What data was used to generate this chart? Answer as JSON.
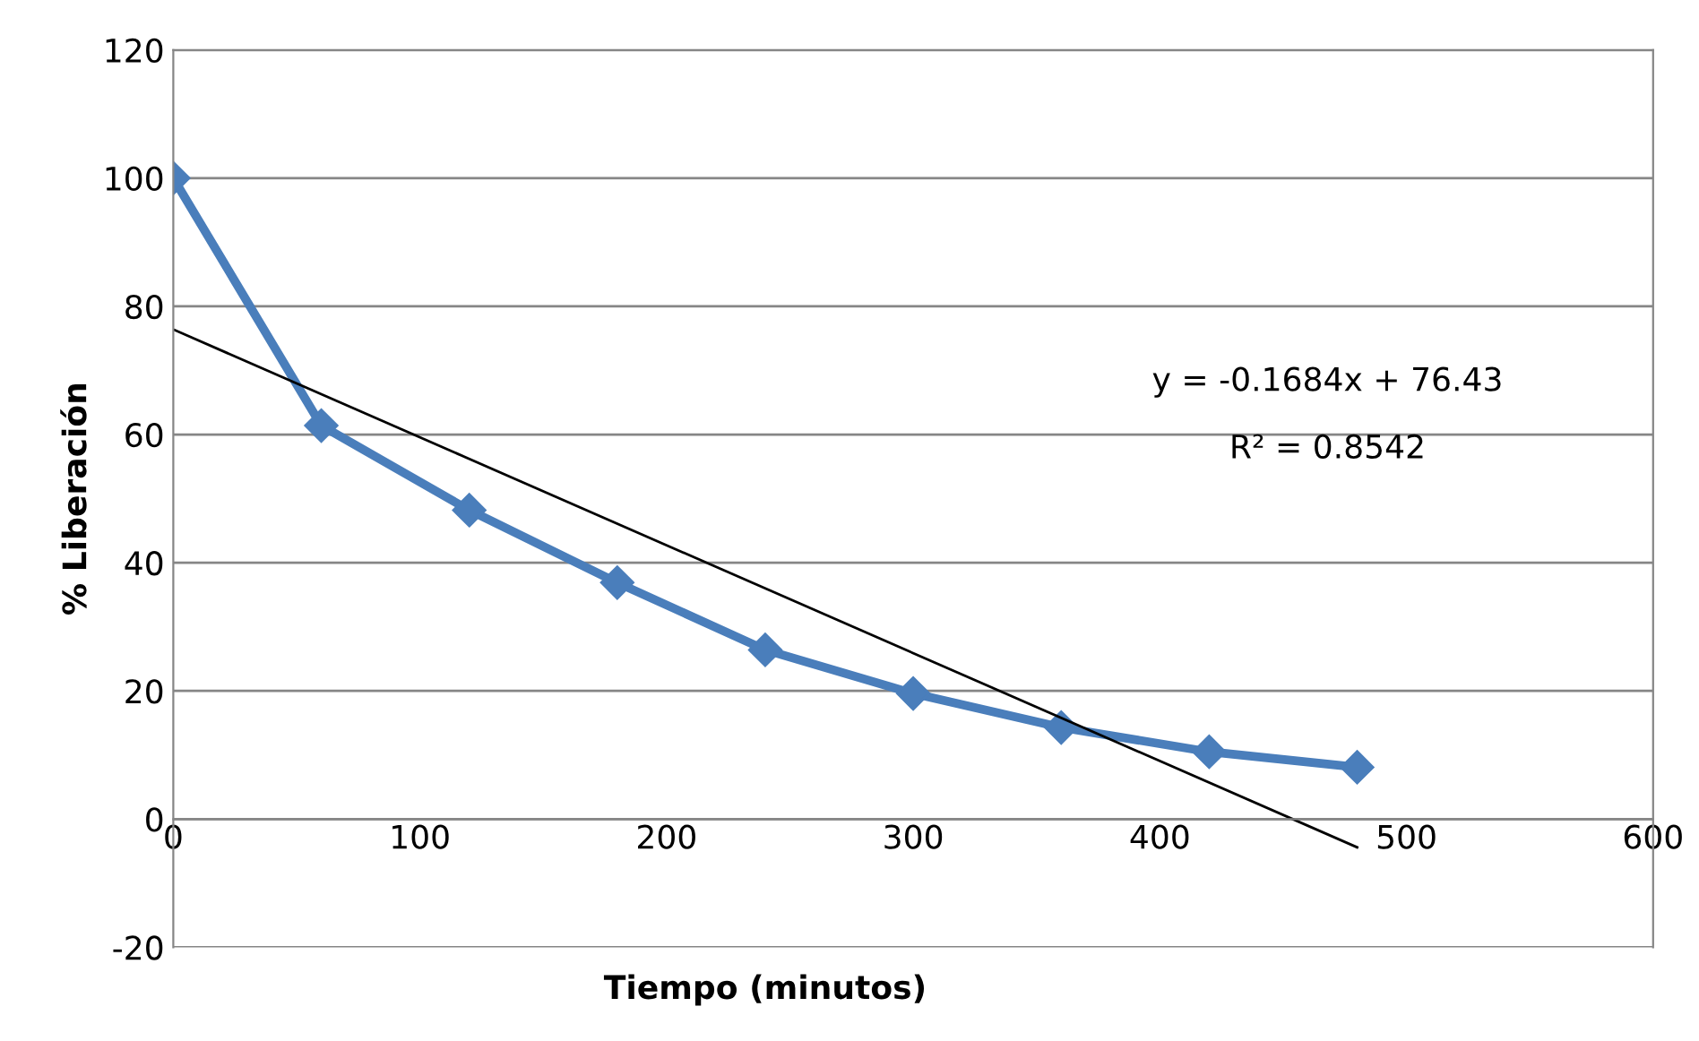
{
  "chart_data": {
    "type": "line",
    "xlabel": "Tiempo (minutos)",
    "ylabel": "% Liberación",
    "series": [
      {
        "color": "#4a7ebb",
        "marker": "diamond",
        "x": [
          0,
          60,
          120,
          180,
          240,
          300,
          360,
          420,
          480
        ],
        "values": [
          100,
          61.4,
          48.2,
          36.9,
          26.4,
          19.6,
          14.3,
          10.5,
          8.1
        ]
      },
      {
        "color": "#000000",
        "marker": "none",
        "x": [
          0,
          480
        ],
        "values": [
          76.4,
          -4.4
        ]
      }
    ],
    "xlim": [
      0,
      600
    ],
    "xticks": [
      0,
      100,
      200,
      300,
      400,
      500,
      600
    ],
    "ylim": [
      -20,
      120
    ],
    "yticks": [
      -20,
      0,
      20,
      40,
      60,
      80,
      100,
      120
    ],
    "grid": "y",
    "legend": false,
    "annotations": [
      "y = -0.1684x + 76.43",
      "R² = 0.8542"
    ]
  }
}
